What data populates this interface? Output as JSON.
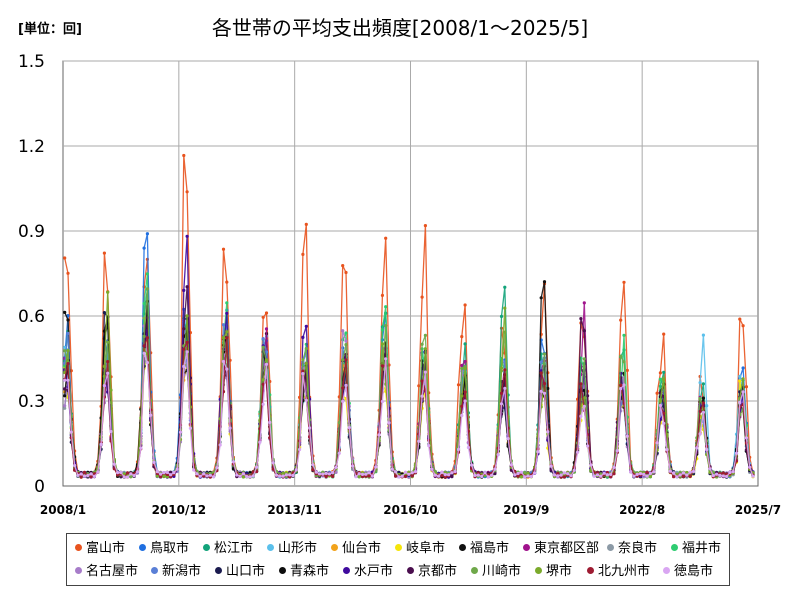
{
  "unit_label": "[単位：回]",
  "chart_data": {
    "type": "line",
    "title": "各世帯の平均支出頻度[2008/1～2025/5]",
    "xlabel": "",
    "ylabel": "",
    "ylim": [
      0,
      1.5
    ],
    "yticks": [
      "0",
      "0.3",
      "0.6",
      "0.9",
      "1.2",
      "1.5"
    ],
    "xticks": [
      "2008/1",
      "2010/12",
      "2013/11",
      "2016/10",
      "2019/9",
      "2022/8",
      "2025/7"
    ],
    "x_range": [
      "2008/1",
      "2025/7"
    ],
    "grid": true,
    "legend_position": "bottom",
    "series": [
      {
        "name": "富山市",
        "color": "#E8531E",
        "peaks": [
          0.88,
          0.85,
          0.91,
          1.13,
          0.94,
          0.78,
          0.91,
          0.77,
          0.91,
          0.85,
          0.59,
          0.6,
          0.75,
          0.72,
          0.78,
          0.52,
          0.4,
          0.66
        ]
      },
      {
        "name": "鳥取市",
        "color": "#1F6FE0",
        "peaks": [
          0.55,
          0.52,
          0.93,
          0.62,
          0.58,
          0.52,
          0.43,
          0.5,
          0.6,
          0.45,
          0.42,
          0.4,
          0.52,
          0.4,
          0.38,
          0.3,
          0.28,
          0.45
        ]
      },
      {
        "name": "松江市",
        "color": "#12A37A",
        "peaks": [
          0.5,
          0.48,
          0.68,
          0.62,
          0.55,
          0.5,
          0.45,
          0.52,
          0.67,
          0.52,
          0.5,
          0.65,
          0.46,
          0.42,
          0.45,
          0.38,
          0.32,
          0.4
        ]
      },
      {
        "name": "山形市",
        "color": "#5BC0EB",
        "peaks": [
          0.48,
          0.46,
          0.62,
          0.6,
          0.57,
          0.5,
          0.44,
          0.46,
          0.52,
          0.45,
          0.4,
          0.38,
          0.42,
          0.38,
          0.4,
          0.35,
          0.53,
          0.42
        ]
      },
      {
        "name": "仙台市",
        "color": "#F2A31B",
        "peaks": [
          0.45,
          0.43,
          0.58,
          0.55,
          0.52,
          0.45,
          0.4,
          0.42,
          0.48,
          0.4,
          0.38,
          0.37,
          0.38,
          0.36,
          0.35,
          0.32,
          0.26,
          0.35
        ]
      },
      {
        "name": "岐阜市",
        "color": "#F5E50A",
        "peaks": [
          0.42,
          0.4,
          0.55,
          0.52,
          0.5,
          0.43,
          0.38,
          0.4,
          0.45,
          0.38,
          0.36,
          0.35,
          0.36,
          0.33,
          0.33,
          0.3,
          0.25,
          0.38
        ]
      },
      {
        "name": "福島市",
        "color": "#111111",
        "peaks": [
          0.67,
          0.63,
          0.64,
          0.55,
          0.5,
          0.48,
          0.42,
          0.45,
          0.46,
          0.42,
          0.38,
          0.37,
          0.69,
          0.4,
          0.38,
          0.34,
          0.28,
          0.32
        ]
      },
      {
        "name": "東京都区部",
        "color": "#A0138C",
        "peaks": [
          0.45,
          0.44,
          0.6,
          0.58,
          0.54,
          0.5,
          0.45,
          0.48,
          0.5,
          0.44,
          0.42,
          0.4,
          0.44,
          0.58,
          0.42,
          0.36,
          0.3,
          0.36
        ]
      },
      {
        "name": "奈良市",
        "color": "#8C9AA6",
        "peaks": [
          0.4,
          0.42,
          0.52,
          0.5,
          0.5,
          0.44,
          0.4,
          0.45,
          0.44,
          0.4,
          0.38,
          0.36,
          0.4,
          0.38,
          0.36,
          0.32,
          0.26,
          0.33
        ]
      },
      {
        "name": "福井市",
        "color": "#2ECC71",
        "peaks": [
          0.52,
          0.5,
          0.66,
          0.6,
          0.6,
          0.62,
          0.5,
          0.55,
          0.62,
          0.54,
          0.48,
          0.52,
          0.48,
          0.45,
          0.47,
          0.4,
          0.32,
          0.38
        ]
      },
      {
        "name": "名古屋市",
        "color": "#A77CC9",
        "peaks": [
          0.42,
          0.4,
          0.55,
          0.52,
          0.52,
          0.46,
          0.42,
          0.58,
          0.48,
          0.42,
          0.4,
          0.38,
          0.4,
          0.38,
          0.36,
          0.32,
          0.27,
          0.34
        ]
      },
      {
        "name": "新潟市",
        "color": "#5A7FD6",
        "peaks": [
          0.48,
          0.46,
          0.6,
          0.58,
          0.55,
          0.5,
          0.45,
          0.48,
          0.52,
          0.46,
          0.42,
          0.4,
          0.44,
          0.4,
          0.4,
          0.35,
          0.29,
          0.36
        ]
      },
      {
        "name": "山口市",
        "color": "#1B1B4F",
        "peaks": [
          0.4,
          0.6,
          0.55,
          0.6,
          0.5,
          0.46,
          0.4,
          0.42,
          0.46,
          0.4,
          0.38,
          0.36,
          0.4,
          0.38,
          0.36,
          0.32,
          0.26,
          0.32
        ]
      },
      {
        "name": "青森市",
        "color": "#0D0D0D",
        "peaks": [
          0.44,
          0.63,
          0.58,
          0.55,
          0.52,
          0.48,
          0.42,
          0.44,
          0.48,
          0.42,
          0.4,
          0.38,
          0.42,
          0.38,
          0.36,
          0.33,
          0.28,
          0.31
        ]
      },
      {
        "name": "水戸市",
        "color": "#3F0A9E",
        "peaks": [
          0.46,
          0.44,
          0.58,
          0.8,
          0.54,
          0.48,
          0.7,
          0.45,
          0.5,
          0.44,
          0.4,
          0.38,
          0.42,
          0.38,
          0.38,
          0.33,
          0.28,
          0.34
        ]
      },
      {
        "name": "京都市",
        "color": "#4A0E4E",
        "peaks": [
          0.43,
          0.42,
          0.55,
          0.76,
          0.52,
          0.46,
          0.42,
          0.44,
          0.47,
          0.42,
          0.38,
          0.37,
          0.4,
          0.58,
          0.38,
          0.32,
          0.27,
          0.33
        ]
      },
      {
        "name": "川崎市",
        "color": "#6FA84A",
        "peaks": [
          0.5,
          0.55,
          0.62,
          0.6,
          0.58,
          0.55,
          0.5,
          0.52,
          0.55,
          0.5,
          0.46,
          0.58,
          0.48,
          0.44,
          0.44,
          0.38,
          0.3,
          0.36
        ]
      },
      {
        "name": "堺市",
        "color": "#7BAA2B",
        "peaks": [
          0.44,
          0.62,
          0.56,
          0.54,
          0.6,
          0.46,
          0.42,
          0.44,
          0.48,
          0.44,
          0.4,
          0.56,
          0.4,
          0.38,
          0.38,
          0.34,
          0.28,
          0.34
        ]
      },
      {
        "name": "北九州市",
        "color": "#9E1B32",
        "peaks": [
          0.4,
          0.4,
          0.52,
          0.5,
          0.48,
          0.44,
          0.4,
          0.42,
          0.45,
          0.4,
          0.38,
          0.36,
          0.38,
          0.36,
          0.34,
          0.3,
          0.26,
          0.3
        ]
      },
      {
        "name": "徳島市",
        "color": "#D9A6F2",
        "peaks": [
          0.38,
          0.38,
          0.5,
          0.48,
          0.46,
          0.42,
          0.38,
          0.4,
          0.42,
          0.38,
          0.36,
          0.34,
          0.38,
          0.34,
          0.33,
          0.3,
          0.25,
          0.29
        ]
      }
    ]
  }
}
